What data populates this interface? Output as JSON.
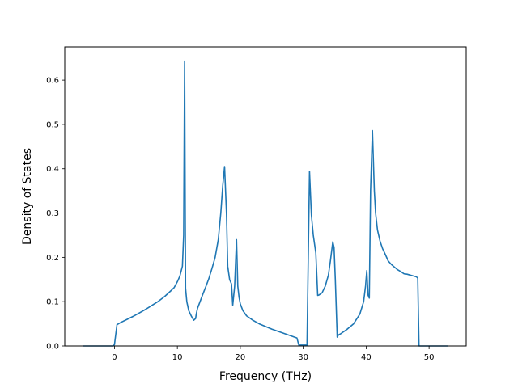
{
  "chart_data": {
    "type": "line",
    "title": "",
    "xlabel": "Frequency (THz)",
    "ylabel": "Density of States",
    "xlim": [
      -7.9,
      55.9
    ],
    "ylim": [
      0,
      0.675
    ],
    "xticks": [
      0,
      10,
      20,
      30,
      40,
      50
    ],
    "yticks": [
      0.0,
      0.1,
      0.2,
      0.3,
      0.4,
      0.5,
      0.6
    ],
    "grid": false,
    "line_color": "#1f77b4",
    "series": [
      {
        "x": [
          -5,
          -0.2,
          0,
          0.4,
          1,
          2,
          3,
          4,
          5,
          6,
          7,
          8,
          9,
          9.5,
          10,
          10.4,
          10.8,
          11.0,
          11.15,
          11.3,
          11.5,
          11.8,
          12.2,
          12.6,
          12.9,
          13.0,
          13.2,
          13.6,
          14,
          14.5,
          15,
          15.5,
          16,
          16.5,
          16.9,
          17.2,
          17.5,
          17.8,
          18.0,
          18.3,
          18.6,
          18.8,
          19.1,
          19.4,
          19.6,
          19.8,
          20.0,
          20.4,
          21,
          22,
          23,
          24,
          25,
          26,
          27,
          28,
          29,
          29.3,
          30.6,
          30.8,
          31.0,
          31.3,
          31.6,
          32.0,
          32.3,
          32.5,
          33,
          33.5,
          34,
          34.3,
          34.7,
          34.9,
          35.1,
          35.4,
          35.6,
          36,
          37,
          38,
          39,
          39.6,
          39.9,
          40.1,
          40.3,
          40.5,
          40.7,
          41.0,
          41.3,
          41.5,
          41.8,
          42.2,
          42.6,
          43,
          43.5,
          44,
          44.5,
          45,
          45.5,
          46,
          46.5,
          47,
          47.5,
          48.0,
          48.2,
          48.4,
          48.6,
          49,
          50,
          51,
          52,
          53
        ],
        "y": [
          0,
          0,
          0.003,
          0.048,
          0.053,
          0.06,
          0.067,
          0.075,
          0.083,
          0.092,
          0.101,
          0.112,
          0.125,
          0.132,
          0.145,
          0.158,
          0.18,
          0.25,
          0.643,
          0.13,
          0.1,
          0.08,
          0.068,
          0.058,
          0.062,
          0.072,
          0.085,
          0.1,
          0.115,
          0.133,
          0.152,
          0.175,
          0.2,
          0.24,
          0.3,
          0.36,
          0.405,
          0.3,
          0.18,
          0.15,
          0.14,
          0.092,
          0.135,
          0.24,
          0.135,
          0.11,
          0.095,
          0.08,
          0.068,
          0.058,
          0.05,
          0.044,
          0.038,
          0.033,
          0.028,
          0.023,
          0.018,
          0.002,
          0.002,
          0.2,
          0.394,
          0.295,
          0.25,
          0.21,
          0.114,
          0.115,
          0.12,
          0.135,
          0.16,
          0.19,
          0.235,
          0.222,
          0.15,
          0.02,
          0.025,
          0.028,
          0.038,
          0.05,
          0.072,
          0.1,
          0.135,
          0.17,
          0.115,
          0.108,
          0.35,
          0.486,
          0.35,
          0.3,
          0.262,
          0.237,
          0.22,
          0.208,
          0.192,
          0.184,
          0.178,
          0.172,
          0.168,
          0.163,
          0.162,
          0.16,
          0.158,
          0.156,
          0.153,
          0.0,
          0.0,
          0.0,
          0.0,
          0.0,
          0.0,
          0.0
        ]
      }
    ]
  }
}
